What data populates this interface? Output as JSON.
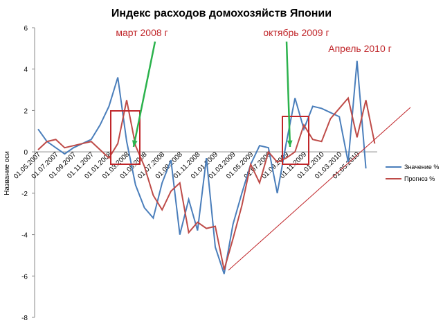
{
  "chart_data": {
    "type": "line",
    "title": "Индекс расходов домохозяйств Японии",
    "ylabel": "Название оси",
    "categories": [
      "01.05.2007",
      null,
      "01.07.2007",
      null,
      "01.09.2007",
      null,
      "01.11.2007",
      null,
      "01.01.2008",
      null,
      "01.03.2008",
      null,
      "01.05.2008",
      null,
      "01.07.2008",
      null,
      "01.09.2008",
      null,
      "01.11.2008",
      null,
      "01.01.2009",
      null,
      "01.03.2009",
      null,
      "01.05.2009",
      null,
      "01.07.2009",
      null,
      "01.09.2009",
      null,
      "01.11.2009",
      null,
      "01.01.2010",
      null,
      "01.03.2010",
      null,
      "01.05.2010",
      null,
      null
    ],
    "series": [
      {
        "name": "Значение %",
        "color": "#4a7ebb",
        "values": [
          1.1,
          0.5,
          0.2,
          -0.1,
          0.2,
          0.4,
          0.6,
          1.3,
          2.2,
          3.6,
          0.5,
          -1.6,
          -2.7,
          -3.2,
          -1.5,
          -0.4,
          -4.0,
          -2.3,
          -3.8,
          -0.3,
          -4.6,
          -5.9,
          -3.5,
          -2.0,
          -0.6,
          0.3,
          0.2,
          -2.0,
          0.4,
          2.6,
          1.1,
          2.2,
          2.1,
          1.9,
          1.7,
          -0.5,
          4.4,
          -0.8,
          null
        ]
      },
      {
        "name": "Прогноз %",
        "color": "#be4b48",
        "values": [
          0.1,
          0.5,
          0.6,
          0.2,
          0.3,
          0.4,
          0.5,
          0.1,
          -0.3,
          0.4,
          2.5,
          0.3,
          -0.7,
          -2.1,
          -2.8,
          -1.9,
          -1.5,
          -3.9,
          -3.4,
          -3.7,
          -3.6,
          -5.7,
          -4.2,
          -2.6,
          -0.6,
          -1.5,
          0,
          -0.5,
          -0.3,
          0,
          1.3,
          0.6,
          0.5,
          1.6,
          2.1,
          2.6,
          0.7,
          2.5,
          0.4
        ]
      }
    ],
    "ylim": [
      -8,
      6
    ],
    "yticks": [
      -8,
      -6,
      -4,
      -2,
      0,
      2,
      4,
      6
    ],
    "annotations": [
      "март 2008 г",
      "октябрь 2009 г",
      "Апрель 2010 г"
    ]
  }
}
